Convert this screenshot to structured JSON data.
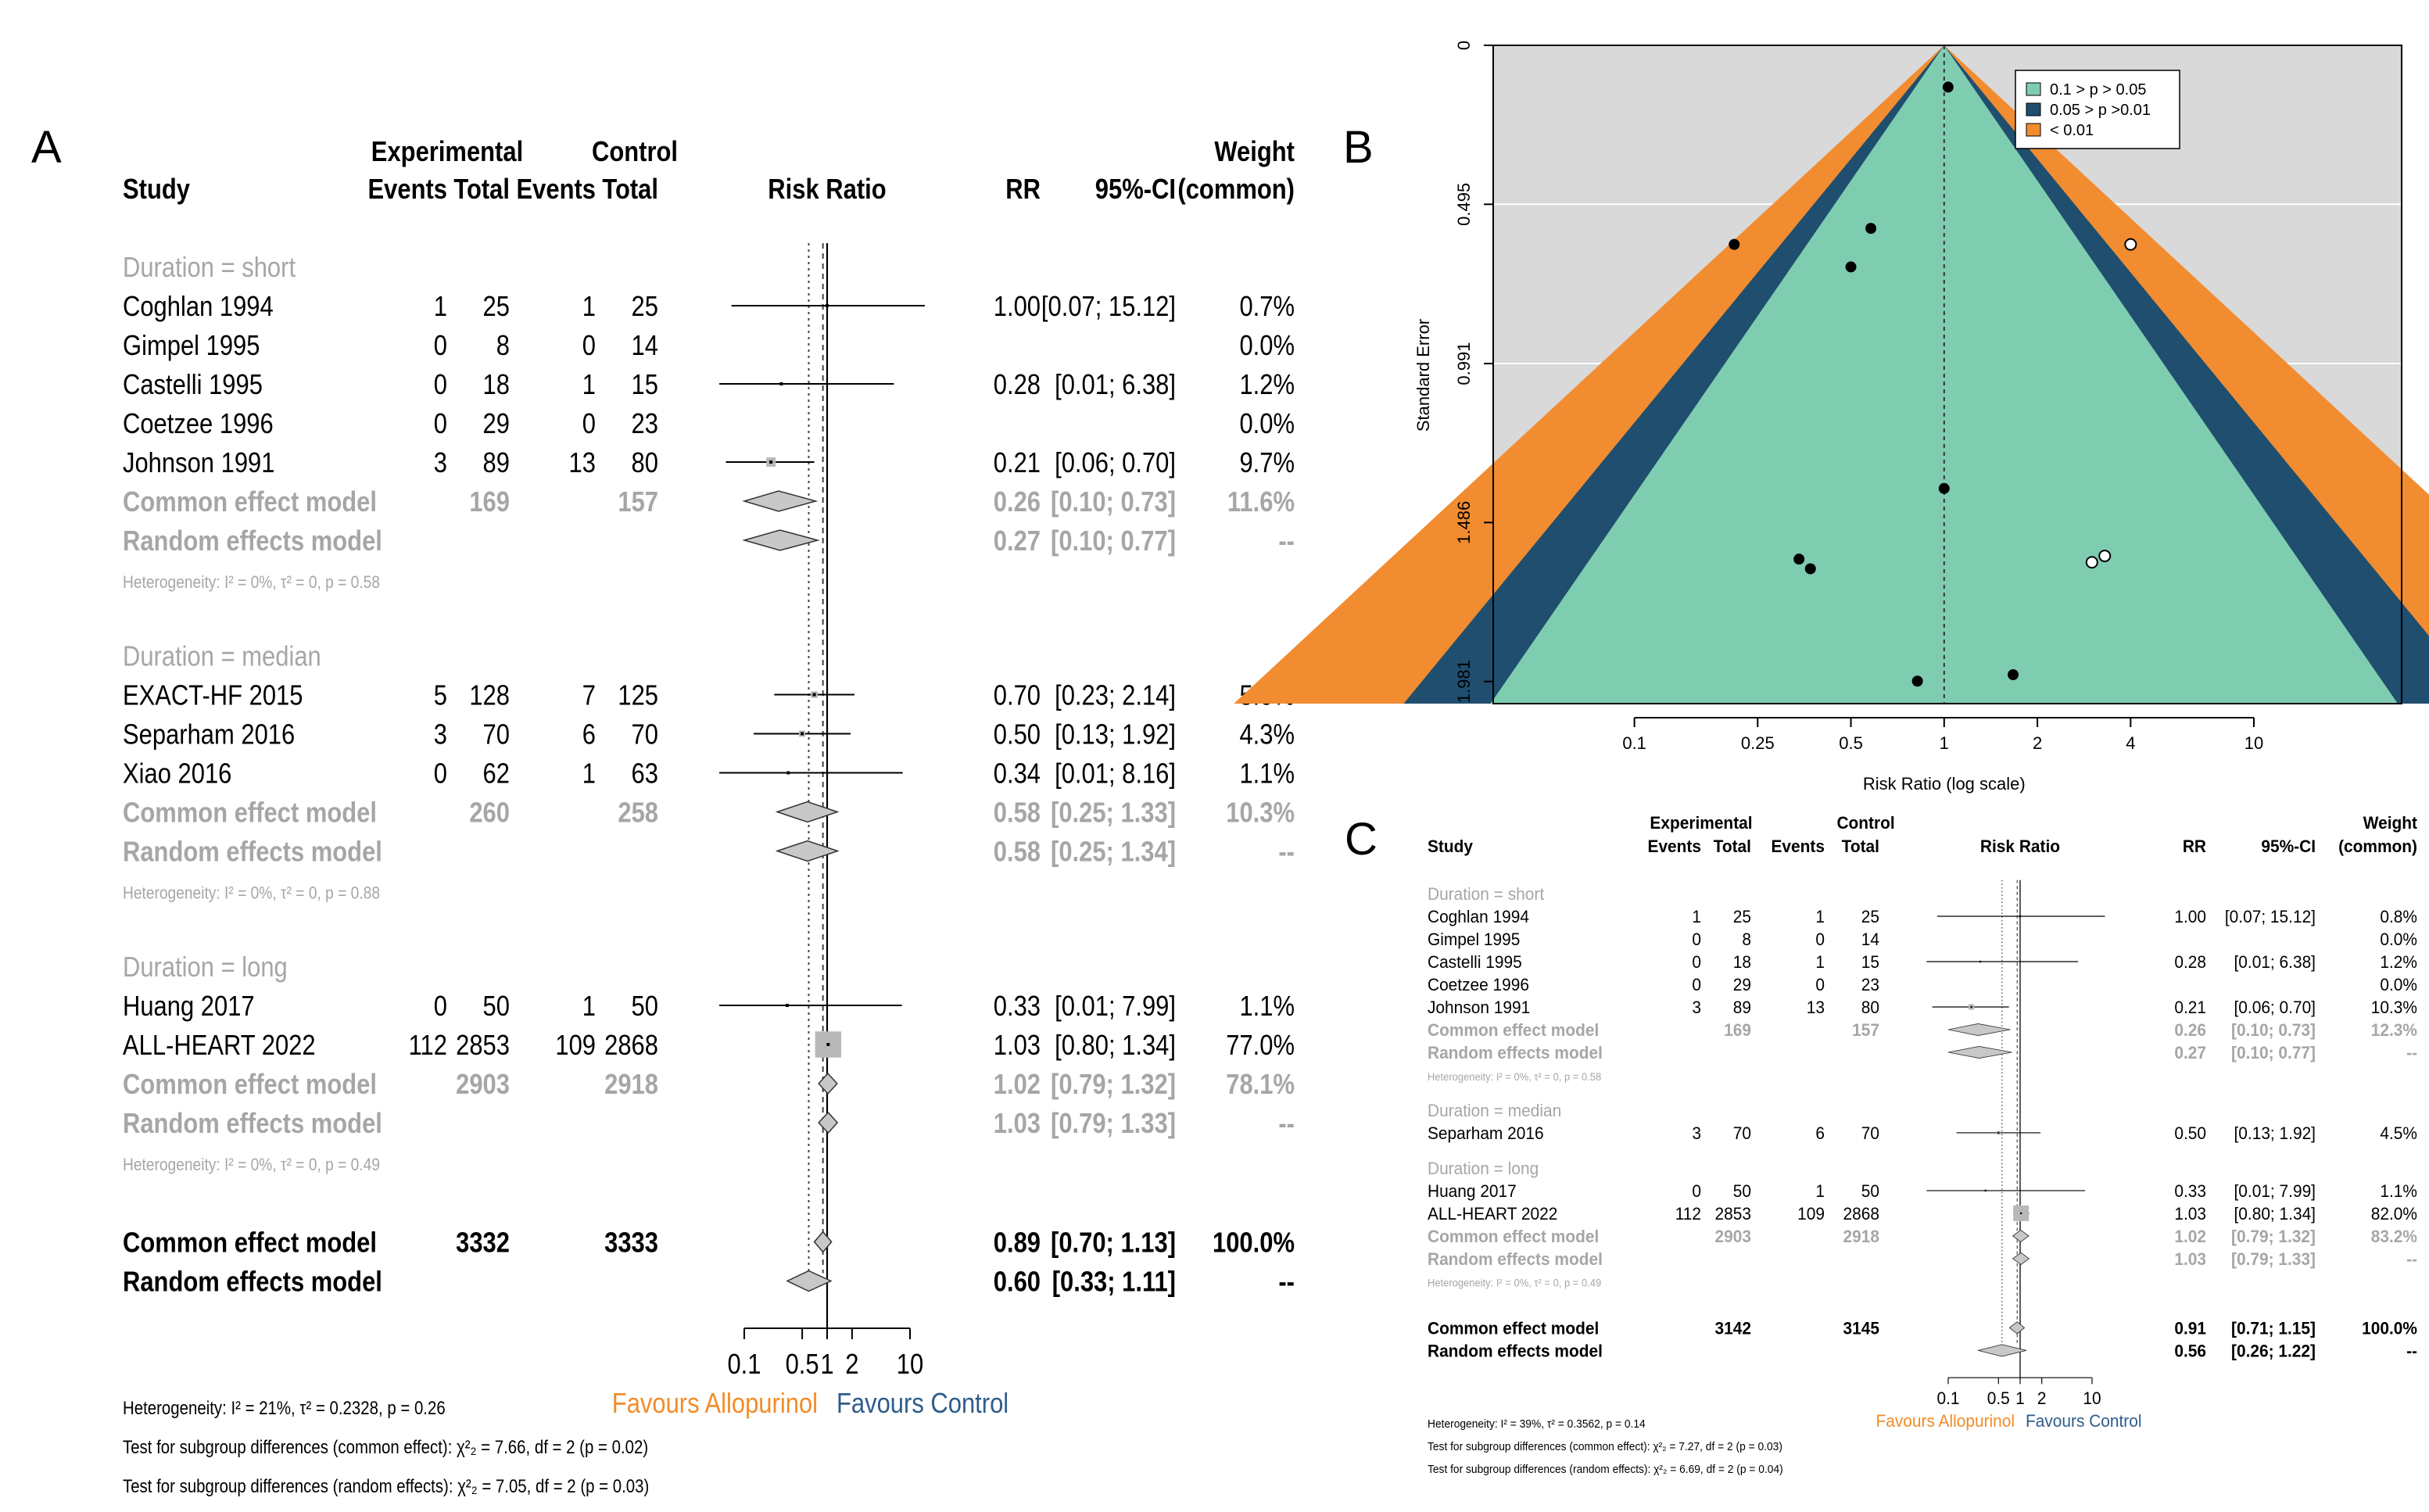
{
  "panel_labels": {
    "a": "A",
    "b": "B",
    "c": "C"
  },
  "forest_headers": {
    "study": "Study",
    "exp": "Experimental",
    "ctrl": "Control",
    "events": "Events",
    "total": "Total",
    "rr_plot": "Risk Ratio",
    "rr": "RR",
    "ci": "95%-CI",
    "weight": "Weight",
    "weight2": "(common)"
  },
  "favours": {
    "left": "Favours Allopurinol",
    "right": "Favours Control",
    "left_color": "#F28C28",
    "right_color": "#2E5C8A"
  },
  "colors": {
    "grey_text": "#a6a6a6",
    "diamond_fill": "#c8c8c8",
    "funnel_bg": "#d9d9d9",
    "zone1": "#7fcdb0",
    "zone2": "#1f4e6e",
    "zone3": "#f28c30"
  },
  "chart_data": [
    {
      "type": "forest",
      "panel": "A",
      "xlabel": "",
      "x_scale": "log",
      "x_ticks": [
        "0.1",
        "0.5",
        "1",
        "2",
        "10"
      ],
      "x_tick_values": [
        0.1,
        0.5,
        1,
        2,
        10
      ],
      "x_range": [
        0.05,
        20
      ],
      "common_line": 0.89,
      "random_line": 0.6,
      "groups": [
        {
          "title": "Duration = short",
          "studies": [
            {
              "name": "Coghlan 1994",
              "ee": "1",
              "et": "25",
              "ce": "1",
              "ct": "25",
              "rr": 1.0,
              "lo": 0.07,
              "hi": 15.12,
              "rr_text": "1.00",
              "ci_text": "[0.07; 15.12]",
              "w": "0.7%",
              "wv": 0.7
            },
            {
              "name": "Gimpel 1995",
              "ee": "0",
              "et": "8",
              "ce": "0",
              "ct": "14",
              "rr": null,
              "lo": null,
              "hi": null,
              "rr_text": "",
              "ci_text": "",
              "w": "0.0%",
              "wv": 0
            },
            {
              "name": "Castelli 1995",
              "ee": "0",
              "et": "18",
              "ce": "1",
              "ct": "15",
              "rr": 0.28,
              "lo": 0.01,
              "hi": 6.38,
              "rr_text": "0.28",
              "ci_text": "[0.01;  6.38]",
              "w": "1.2%",
              "wv": 1.2
            },
            {
              "name": "Coetzee 1996",
              "ee": "0",
              "et": "29",
              "ce": "0",
              "ct": "23",
              "rr": null,
              "lo": null,
              "hi": null,
              "rr_text": "",
              "ci_text": "",
              "w": "0.0%",
              "wv": 0
            },
            {
              "name": "Johnson 1991",
              "ee": "3",
              "et": "89",
              "ce": "13",
              "ct": "80",
              "rr": 0.21,
              "lo": 0.06,
              "hi": 0.7,
              "rr_text": "0.21",
              "ci_text": "[0.06;  0.70]",
              "w": "9.7%",
              "wv": 9.7
            }
          ],
          "common": {
            "label": "Common effect model",
            "et": "169",
            "ct": "157",
            "rr": 0.26,
            "lo": 0.1,
            "hi": 0.73,
            "rr_text": "0.26",
            "ci_text": "[0.10;  0.73]",
            "w": "11.6%"
          },
          "random": {
            "label": "Random effects model",
            "rr": 0.27,
            "lo": 0.1,
            "hi": 0.77,
            "rr_text": "0.27",
            "ci_text": "[0.10;  0.77]",
            "w": "--"
          },
          "het": "Heterogeneity: I² = 0%, τ² = 0, p = 0.58"
        },
        {
          "title": "Duration = median",
          "studies": [
            {
              "name": "EXACT-HF 2015",
              "ee": "5",
              "et": "128",
              "ce": "7",
              "ct": "125",
              "rr": 0.7,
              "lo": 0.23,
              "hi": 2.14,
              "rr_text": "0.70",
              "ci_text": "[0.23;  2.14]",
              "w": "5.0%",
              "wv": 5.0
            },
            {
              "name": "Separham 2016",
              "ee": "3",
              "et": "70",
              "ce": "6",
              "ct": "70",
              "rr": 0.5,
              "lo": 0.13,
              "hi": 1.92,
              "rr_text": "0.50",
              "ci_text": "[0.13;  1.92]",
              "w": "4.3%",
              "wv": 4.3
            },
            {
              "name": "Xiao 2016",
              "ee": "0",
              "et": "62",
              "ce": "1",
              "ct": "63",
              "rr": 0.34,
              "lo": 0.01,
              "hi": 8.16,
              "rr_text": "0.34",
              "ci_text": "[0.01;  8.16]",
              "w": "1.1%",
              "wv": 1.1
            }
          ],
          "common": {
            "label": "Common effect model",
            "et": "260",
            "ct": "258",
            "rr": 0.58,
            "lo": 0.25,
            "hi": 1.33,
            "rr_text": "0.58",
            "ci_text": "[0.25;  1.33]",
            "w": "10.3%"
          },
          "random": {
            "label": "Random effects model",
            "rr": 0.58,
            "lo": 0.25,
            "hi": 1.34,
            "rr_text": "0.58",
            "ci_text": "[0.25;  1.34]",
            "w": "--"
          },
          "het": "Heterogeneity: I² = 0%, τ² = 0, p = 0.88"
        },
        {
          "title": "Duration = long",
          "studies": [
            {
              "name": "Huang 2017",
              "ee": "0",
              "et": "50",
              "ce": "1",
              "ct": "50",
              "rr": 0.33,
              "lo": 0.01,
              "hi": 7.99,
              "rr_text": "0.33",
              "ci_text": "[0.01;  7.99]",
              "w": "1.1%",
              "wv": 1.1
            },
            {
              "name": "ALL-HEART 2022",
              "ee": "112",
              "et": "2853",
              "ce": "109",
              "ct": "2868",
              "rr": 1.03,
              "lo": 0.8,
              "hi": 1.34,
              "rr_text": "1.03",
              "ci_text": "[0.80;  1.34]",
              "w": "77.0%",
              "wv": 77.0
            }
          ],
          "common": {
            "label": "Common effect model",
            "et": "2903",
            "ct": "2918",
            "rr": 1.02,
            "lo": 0.79,
            "hi": 1.32,
            "rr_text": "1.02",
            "ci_text": "[0.79;  1.32]",
            "w": "78.1%"
          },
          "random": {
            "label": "Random effects model",
            "rr": 1.03,
            "lo": 0.79,
            "hi": 1.33,
            "rr_text": "1.03",
            "ci_text": "[0.79;  1.33]",
            "w": "--"
          },
          "het": "Heterogeneity: I² = 0%, τ² = 0, p = 0.49"
        }
      ],
      "overall_common": {
        "label": "Common effect model",
        "et": "3332",
        "ct": "3333",
        "rr": 0.89,
        "lo": 0.7,
        "hi": 1.13,
        "rr_text": "0.89",
        "ci_text": "[0.70;  1.13]",
        "w": "100.0%"
      },
      "overall_random": {
        "label": "Random effects model",
        "rr": 0.6,
        "lo": 0.33,
        "hi": 1.11,
        "rr_text": "0.60",
        "ci_text": "[0.33;  1.11]",
        "w": "--"
      },
      "footer": [
        "Heterogeneity: I² = 21%, τ² = 0.2328, p = 0.26",
        "Test for subgroup differences (common effect): χ²₂ = 7.66, df = 2 (p = 0.02)",
        "Test for subgroup differences (random effects): χ²₂ = 7.05, df = 2 (p = 0.03)"
      ]
    },
    {
      "type": "scatter",
      "subtype": "contour-enhanced funnel plot",
      "panel": "B",
      "xlabel": "Risk Ratio (log scale)",
      "ylabel": "Standard Error",
      "x_scale": "log",
      "x_ticks": [
        "0.1",
        "0.25",
        "0.5",
        "1",
        "2",
        "4",
        "10"
      ],
      "x_tick_values": [
        0.1,
        0.25,
        0.5,
        1,
        2,
        4,
        10
      ],
      "y_ticks": [
        "0",
        "0.495",
        "0.991",
        "1.486",
        "1.981"
      ],
      "y_tick_values": [
        0,
        0.495,
        0.991,
        1.486,
        1.981
      ],
      "y_range": [
        0,
        2.05
      ],
      "x_range": [
        0.035,
        30
      ],
      "legend": [
        "0.1 > p > 0.05",
        "0.05 > p >0.01",
        "< 0.01"
      ],
      "legend_position": "top-right",
      "points_observed": [
        {
          "x": 1.03,
          "y": 0.13
        },
        {
          "x": 0.21,
          "y": 0.62
        },
        {
          "x": 0.58,
          "y": 0.57
        },
        {
          "x": 0.5,
          "y": 0.69
        },
        {
          "x": 1.0,
          "y": 1.38
        },
        {
          "x": 0.34,
          "y": 1.6
        },
        {
          "x": 0.37,
          "y": 1.63
        },
        {
          "x": 1.67,
          "y": 1.96
        },
        {
          "x": 0.82,
          "y": 1.98
        }
      ],
      "points_filled": [
        {
          "x": 4.0,
          "y": 0.62
        },
        {
          "x": 3.0,
          "y": 1.61
        },
        {
          "x": 3.3,
          "y": 1.59
        }
      ]
    },
    {
      "type": "forest",
      "panel": "C",
      "xlabel": "",
      "x_scale": "log",
      "x_ticks": [
        "0.1",
        "0.5",
        "1",
        "2",
        "10"
      ],
      "x_tick_values": [
        0.1,
        0.5,
        1,
        2,
        10
      ],
      "x_range": [
        0.05,
        20
      ],
      "common_line": 0.91,
      "random_line": 0.56,
      "groups": [
        {
          "title": "Duration = short",
          "studies": [
            {
              "name": "Coghlan 1994",
              "ee": "1",
              "et": "25",
              "ce": "1",
              "ct": "25",
              "rr": 1.0,
              "lo": 0.07,
              "hi": 15.12,
              "rr_text": "1.00",
              "ci_text": "[0.07; 15.12]",
              "w": "0.8%",
              "wv": 0.8
            },
            {
              "name": "Gimpel 1995",
              "ee": "0",
              "et": "8",
              "ce": "0",
              "ct": "14",
              "rr": null,
              "lo": null,
              "hi": null,
              "rr_text": "",
              "ci_text": "",
              "w": "0.0%",
              "wv": 0
            },
            {
              "name": "Castelli 1995",
              "ee": "0",
              "et": "18",
              "ce": "1",
              "ct": "15",
              "rr": 0.28,
              "lo": 0.01,
              "hi": 6.38,
              "rr_text": "0.28",
              "ci_text": "[0.01;  6.38]",
              "w": "1.2%",
              "wv": 1.2
            },
            {
              "name": "Coetzee 1996",
              "ee": "0",
              "et": "29",
              "ce": "0",
              "ct": "23",
              "rr": null,
              "lo": null,
              "hi": null,
              "rr_text": "",
              "ci_text": "",
              "w": "0.0%",
              "wv": 0
            },
            {
              "name": "Johnson 1991",
              "ee": "3",
              "et": "89",
              "ce": "13",
              "ct": "80",
              "rr": 0.21,
              "lo": 0.06,
              "hi": 0.7,
              "rr_text": "0.21",
              "ci_text": "[0.06;  0.70]",
              "w": "10.3%",
              "wv": 10.3
            }
          ],
          "common": {
            "label": "Common effect model",
            "et": "169",
            "ct": "157",
            "rr": 0.26,
            "lo": 0.1,
            "hi": 0.73,
            "rr_text": "0.26",
            "ci_text": "[0.10;  0.73]",
            "w": "12.3%"
          },
          "random": {
            "label": "Random effects model",
            "rr": 0.27,
            "lo": 0.1,
            "hi": 0.77,
            "rr_text": "0.27",
            "ci_text": "[0.10;  0.77]",
            "w": "--"
          },
          "het": "Heterogeneity: I² = 0%, τ² = 0, p = 0.58"
        },
        {
          "title": "Duration = median",
          "studies": [
            {
              "name": "Separham 2016",
              "ee": "3",
              "et": "70",
              "ce": "6",
              "ct": "70",
              "rr": 0.5,
              "lo": 0.13,
              "hi": 1.92,
              "rr_text": "0.50",
              "ci_text": "[0.13;  1.92]",
              "w": "4.5%",
              "wv": 4.5
            }
          ]
        },
        {
          "title": "Duration = long",
          "studies": [
            {
              "name": "Huang 2017",
              "ee": "0",
              "et": "50",
              "ce": "1",
              "ct": "50",
              "rr": 0.33,
              "lo": 0.01,
              "hi": 7.99,
              "rr_text": "0.33",
              "ci_text": "[0.01;  7.99]",
              "w": "1.1%",
              "wv": 1.1
            },
            {
              "name": "ALL-HEART 2022",
              "ee": "112",
              "et": "2853",
              "ce": "109",
              "ct": "2868",
              "rr": 1.03,
              "lo": 0.8,
              "hi": 1.34,
              "rr_text": "1.03",
              "ci_text": "[0.80;  1.34]",
              "w": "82.0%",
              "wv": 82.0
            }
          ],
          "common": {
            "label": "Common effect model",
            "et": "2903",
            "ct": "2918",
            "rr": 1.02,
            "lo": 0.79,
            "hi": 1.32,
            "rr_text": "1.02",
            "ci_text": "[0.79;  1.32]",
            "w": "83.2%"
          },
          "random": {
            "label": "Random effects model",
            "rr": 1.03,
            "lo": 0.79,
            "hi": 1.33,
            "rr_text": "1.03",
            "ci_text": "[0.79;  1.33]",
            "w": "--"
          },
          "het": "Heterogeneity: I² = 0%, τ² = 0, p = 0.49"
        }
      ],
      "overall_common": {
        "label": "Common effect model",
        "et": "3142",
        "ct": "3145",
        "rr": 0.91,
        "lo": 0.71,
        "hi": 1.15,
        "rr_text": "0.91",
        "ci_text": "[0.71;  1.15]",
        "w": "100.0%"
      },
      "overall_random": {
        "label": "Random effects model",
        "rr": 0.56,
        "lo": 0.26,
        "hi": 1.22,
        "rr_text": "0.56",
        "ci_text": "[0.26;  1.22]",
        "w": "--"
      },
      "footer": [
        "Heterogeneity: I² = 39%, τ² = 0.3562, p = 0.14",
        "Test for subgroup differences (common effect): χ²₂ = 7.27, df = 2 (p = 0.03)",
        "Test for subgroup differences (random effects): χ²₂ = 6.69, df = 2 (p = 0.04)"
      ]
    }
  ]
}
